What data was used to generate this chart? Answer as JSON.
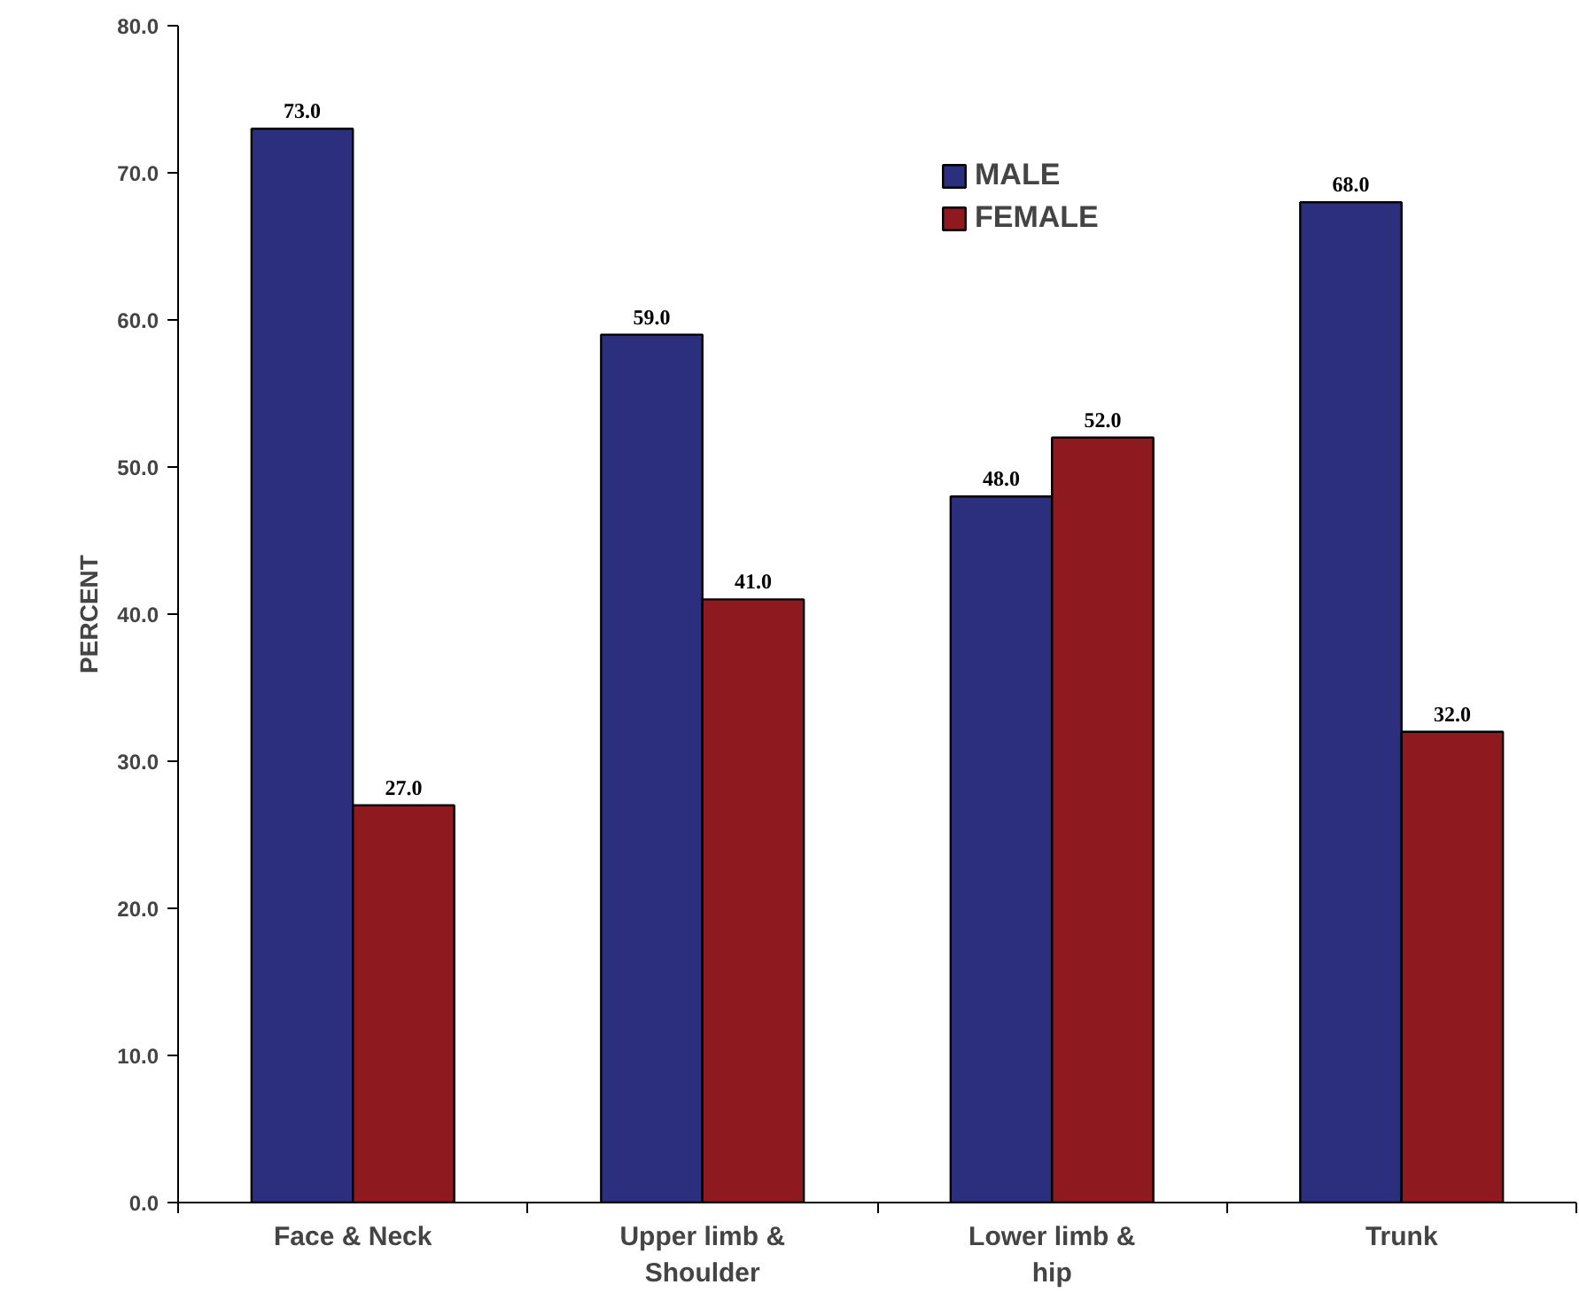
{
  "chart_data": {
    "type": "bar",
    "ylabel": "PERCENT",
    "categories": [
      "Face & Neck",
      "Upper limb & Shoulder",
      "Lower limb & hip",
      "Trunk"
    ],
    "series": [
      {
        "name": "MALE",
        "color": "#2b2f7e",
        "values": [
          73.0,
          59.0,
          48.0,
          68.0
        ],
        "value_labels": [
          "73.0",
          "59.0",
          "48.0",
          "68.0"
        ]
      },
      {
        "name": "FEMALE",
        "color": "#8e1a1f",
        "values": [
          27.0,
          41.0,
          52.0,
          32.0
        ],
        "value_labels": [
          "27.0",
          "41.0",
          "52.0",
          "32.0"
        ]
      }
    ],
    "ylim": [
      0,
      80
    ],
    "yticks": [
      {
        "value": 0,
        "label": "0.0"
      },
      {
        "value": 10,
        "label": "10.0"
      },
      {
        "value": 20,
        "label": "20.0"
      },
      {
        "value": 30,
        "label": "30.0"
      },
      {
        "value": 40,
        "label": "40.0"
      },
      {
        "value": 50,
        "label": "50.0"
      },
      {
        "value": 60,
        "label": "60.0"
      },
      {
        "value": 70,
        "label": "70.0"
      },
      {
        "value": 80,
        "label": "80.0"
      }
    ],
    "grid": false,
    "legend": "top"
  }
}
